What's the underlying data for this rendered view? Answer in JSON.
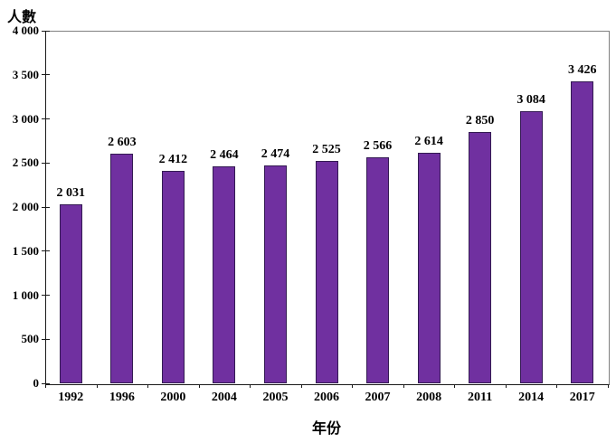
{
  "chart_data": {
    "type": "bar",
    "title": "",
    "ylabel": "人數",
    "xlabel": "年份",
    "categories": [
      "1992",
      "1996",
      "2000",
      "2004",
      "2005",
      "2006",
      "2007",
      "2008",
      "2011",
      "2014",
      "2017"
    ],
    "values": [
      2031,
      2603,
      2412,
      2464,
      2474,
      2525,
      2566,
      2614,
      2850,
      3084,
      3426
    ],
    "value_labels": [
      "2 031",
      "2 603",
      "2 412",
      "2 464",
      "2 474",
      "2 525",
      "2 566",
      "2 614",
      "2 850",
      "3 084",
      "3 426"
    ],
    "ylim": [
      0,
      4000
    ],
    "ytick_interval": 500,
    "ytick_labels_top_to_bottom": [
      "4 000",
      "3 500",
      "3 000",
      "2 500",
      "2 000",
      "1 500",
      "1 000",
      "500",
      "0"
    ],
    "grid": false,
    "legend_position": "none",
    "bar_color": "#7030A0",
    "bar_border_color": "#331A52",
    "axis_color": "#1a1a1a",
    "plot_border_color": "#808080"
  }
}
